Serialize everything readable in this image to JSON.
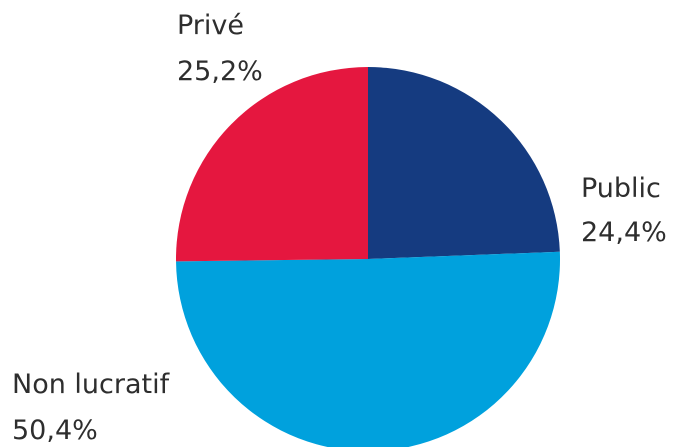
{
  "chart_data": {
    "type": "pie",
    "slices": [
      {
        "label": "Public",
        "value": 24.4,
        "value_label": "24,4%",
        "color": "#153b80"
      },
      {
        "label": "Non lucratif",
        "value": 50.4,
        "value_label": "50,4%",
        "color": "#00a1dd"
      },
      {
        "label": "Privé",
        "value": 25.2,
        "value_label": "25,2%",
        "color": "#e5173f"
      }
    ],
    "start_angle_deg": 0,
    "direction": "clockwise"
  }
}
